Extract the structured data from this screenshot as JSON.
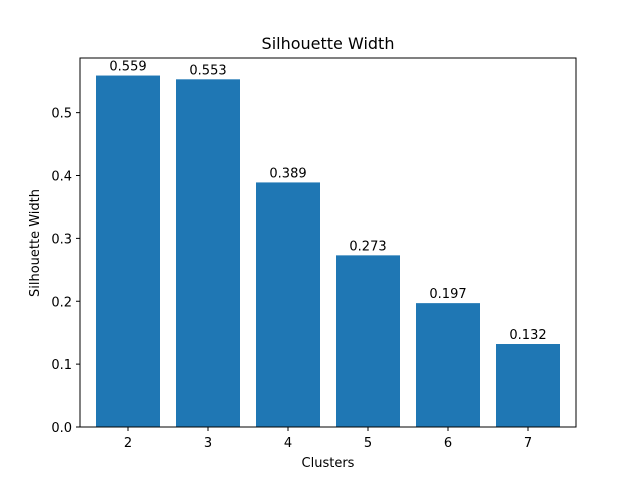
{
  "chart_data": {
    "type": "bar",
    "title": "Silhouette Width",
    "xlabel": "Clusters",
    "ylabel": "Silhouette Width",
    "categories": [
      "2",
      "3",
      "4",
      "5",
      "6",
      "7"
    ],
    "values": [
      0.559,
      0.553,
      0.389,
      0.273,
      0.197,
      0.132
    ],
    "data_labels": [
      "0.559",
      "0.553",
      "0.389",
      "0.273",
      "0.197",
      "0.132"
    ],
    "ylim": [
      0,
      0.5869
    ],
    "yticks": [
      0.0,
      0.1,
      0.2,
      0.3,
      0.4,
      0.5
    ],
    "ytick_labels": [
      "0.0",
      "0.1",
      "0.2",
      "0.3",
      "0.4",
      "0.5"
    ],
    "grid": false,
    "legend": "none",
    "bar_color": "#1f77b4"
  }
}
